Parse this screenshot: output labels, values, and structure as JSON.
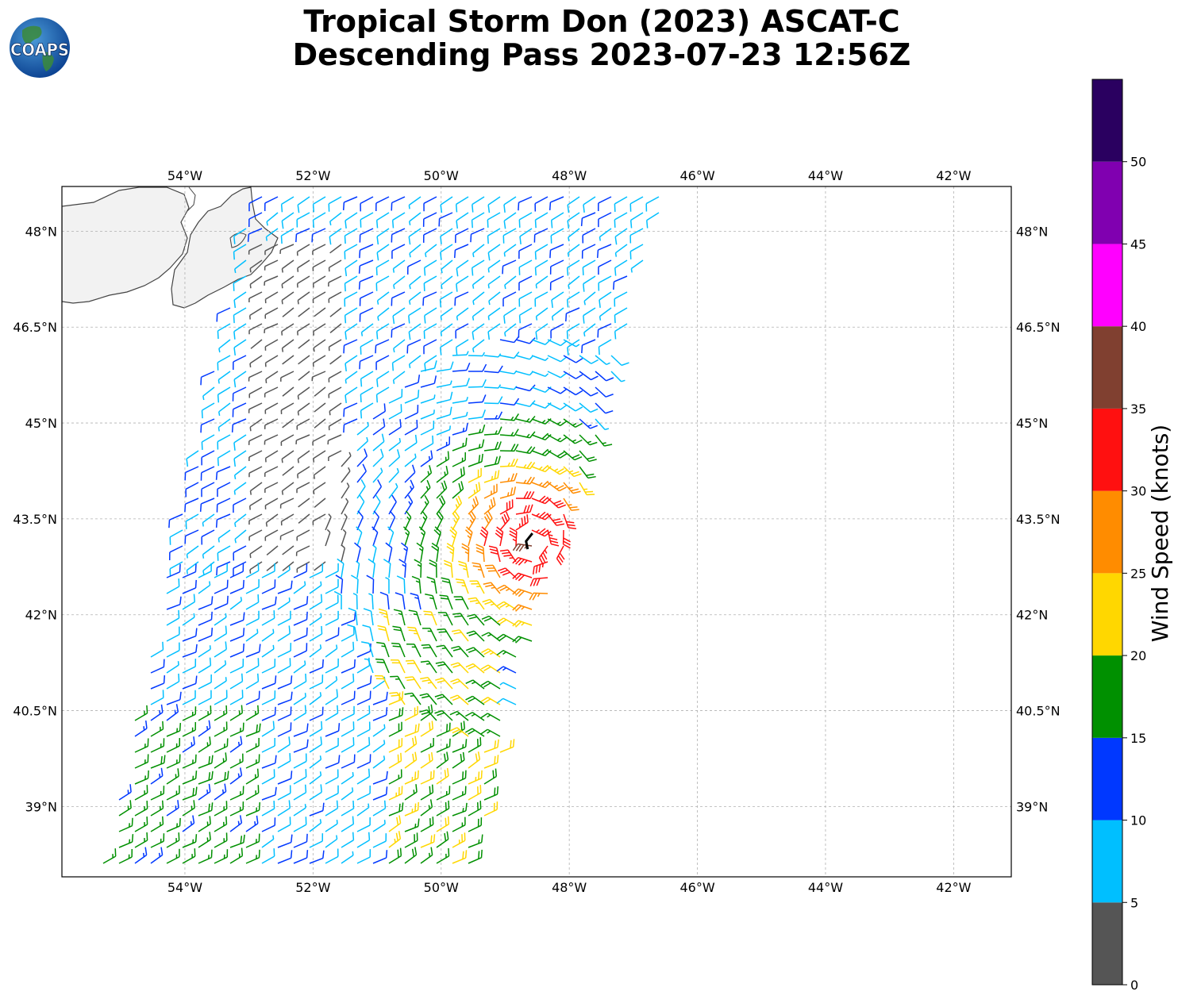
{
  "title": {
    "line1": "Tropical Storm Don (2023) ASCAT-C",
    "line2": "Descending Pass 2023-07-23 12:56Z"
  },
  "logo": {
    "text": "COAPS"
  },
  "map": {
    "lon_ticks": [
      {
        "value": -54,
        "label": "54°W"
      },
      {
        "value": -52,
        "label": "52°W"
      },
      {
        "value": -50,
        "label": "50°W"
      },
      {
        "value": -48,
        "label": "48°W"
      },
      {
        "value": -46,
        "label": "46°W"
      },
      {
        "value": -44,
        "label": "44°W"
      },
      {
        "value": -42,
        "label": "42°W"
      }
    ],
    "lat_ticks": [
      {
        "value": 48,
        "label": "48°N"
      },
      {
        "value": 46.5,
        "label": "46.5°N"
      },
      {
        "value": 45,
        "label": "45°N"
      },
      {
        "value": 43.5,
        "label": "43.5°N"
      },
      {
        "value": 42,
        "label": "42°N"
      },
      {
        "value": 40.5,
        "label": "40.5°N"
      },
      {
        "value": 39,
        "label": "39°N"
      }
    ],
    "lon_range": [
      -55.92,
      -41.1
    ],
    "lat_range": [
      37.9,
      48.7
    ],
    "grid": true,
    "land": "Newfoundland coastline, top-left",
    "storm_center": {
      "lon": -48.6,
      "lat": 43.15
    }
  },
  "colorbar": {
    "label": "Wind Speed (knots)",
    "ticks": [
      "0",
      "5",
      "10",
      "15",
      "20",
      "25",
      "30",
      "35",
      "40",
      "45",
      "50"
    ],
    "bins": [
      {
        "from": 0,
        "to": 5,
        "color": "#555555"
      },
      {
        "from": 5,
        "to": 10,
        "color": "#00bfff"
      },
      {
        "from": 10,
        "to": 15,
        "color": "#0038ff"
      },
      {
        "from": 15,
        "to": 20,
        "color": "#009000"
      },
      {
        "from": 20,
        "to": 25,
        "color": "#ffd700"
      },
      {
        "from": 25,
        "to": 30,
        "color": "#ff8c00"
      },
      {
        "from": 30,
        "to": 35,
        "color": "#ff1010"
      },
      {
        "from": 35,
        "to": 40,
        "color": "#804030"
      },
      {
        "from": 40,
        "to": 45,
        "color": "#ff00ff"
      },
      {
        "from": 45,
        "to": 50,
        "color": "#8000b0"
      },
      {
        "from": 50,
        "to": 55,
        "color": "#2a0060"
      }
    ]
  }
}
